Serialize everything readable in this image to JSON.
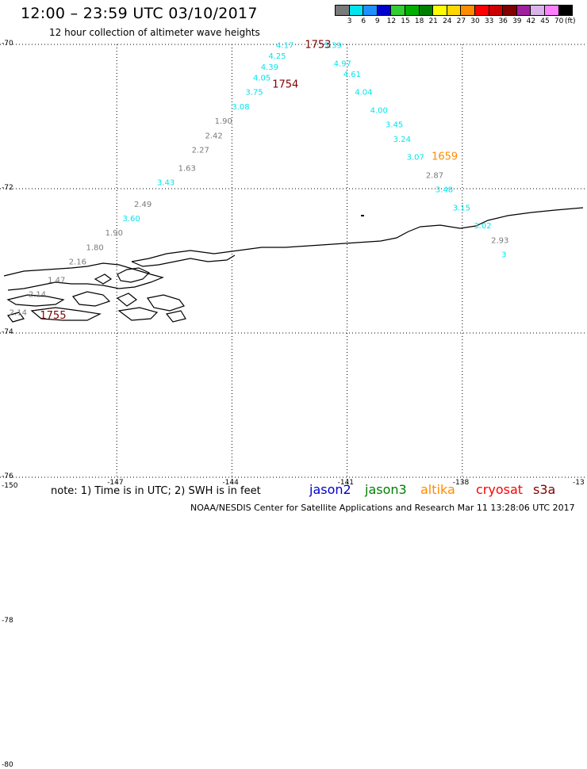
{
  "header": {
    "title": "12:00 – 23:59 UTC 03/10/2017",
    "subtitle": "12 hour collection of altimeter wave heights"
  },
  "legend": {
    "unit": "(ft)",
    "bins": [
      {
        "label": "3",
        "color": "#7a7a7a"
      },
      {
        "label": "6",
        "color": "#00e5ee"
      },
      {
        "label": "9",
        "color": "#1e90ff"
      },
      {
        "label": "12",
        "color": "#0000cd"
      },
      {
        "label": "15",
        "color": "#32cd32"
      },
      {
        "label": "18",
        "color": "#00b000"
      },
      {
        "label": "21",
        "color": "#008000"
      },
      {
        "label": "24",
        "color": "#ffff00"
      },
      {
        "label": "27",
        "color": "#ffd700"
      },
      {
        "label": "30",
        "color": "#ff8c00"
      },
      {
        "label": "33",
        "color": "#ff0000"
      },
      {
        "label": "36",
        "color": "#cc0000"
      },
      {
        "label": "39",
        "color": "#800000"
      },
      {
        "label": "42",
        "color": "#a020a0"
      },
      {
        "label": "45",
        "color": "#d8b4e8"
      },
      {
        "label": "70",
        "color": "#ff80ff"
      },
      {
        "label": "",
        "color": "#000000"
      }
    ]
  },
  "map": {
    "lat_labels": [
      "-70",
      "-72",
      "-74",
      "-76",
      "-78",
      "-80"
    ],
    "lon_labels": [
      "-150",
      "-147",
      "-144",
      "-141",
      "-138",
      "-13"
    ]
  },
  "tracks": [
    {
      "color": "#00e5ee",
      "time_label": "",
      "points": [
        {
          "lon": -142.85,
          "lat": -70.05,
          "value": "4.17"
        },
        {
          "lon": -143.05,
          "lat": -70.2,
          "value": "4.25"
        },
        {
          "lon": -143.25,
          "lat": -70.35,
          "value": "4.39"
        },
        {
          "lon": -143.45,
          "lat": -70.5,
          "value": "4.05"
        },
        {
          "lon": -143.65,
          "lat": -70.7,
          "value": "3.75"
        },
        {
          "lon": -144.0,
          "lat": -70.9,
          "value": "3.08"
        }
      ]
    },
    {
      "color": "#7a7a7a",
      "time_label": "",
      "points": [
        {
          "lon": -144.45,
          "lat": -71.1,
          "value": "1.90"
        },
        {
          "lon": -144.7,
          "lat": -71.3,
          "value": "2.42"
        },
        {
          "lon": -145.05,
          "lat": -71.5,
          "value": "2.27"
        },
        {
          "lon": -145.4,
          "lat": -71.75,
          "value": "1.63"
        }
      ]
    },
    {
      "color": "#00e5ee",
      "time_label": "",
      "points": [
        {
          "lon": -145.95,
          "lat": -71.95,
          "value": "3.43"
        }
      ]
    },
    {
      "color": "#7a7a7a",
      "time_label": "",
      "points": [
        {
          "lon": -146.55,
          "lat": -72.25,
          "value": "2.49"
        }
      ]
    },
    {
      "color": "#00e5ee",
      "time_label": "",
      "points": [
        {
          "lon": -146.85,
          "lat": -72.45,
          "value": "3.60"
        }
      ]
    },
    {
      "color": "#7a7a7a",
      "time_label": "",
      "points": [
        {
          "lon": -147.3,
          "lat": -72.65,
          "value": "1.90"
        },
        {
          "lon": -147.8,
          "lat": -72.85,
          "value": "1.80"
        },
        {
          "lon": -148.25,
          "lat": -73.05,
          "value": "2.16"
        },
        {
          "lon": -148.8,
          "lat": -73.3,
          "value": "1.47"
        },
        {
          "lon": -149.3,
          "lat": -73.5,
          "value": "2.14"
        },
        {
          "lon": -149.8,
          "lat": -73.75,
          "value": "2.14"
        }
      ]
    },
    {
      "color": "#00e5ee",
      "time_label": "1659",
      "time_color": "#ff8c00",
      "points": [
        {
          "lon": -141.6,
          "lat": -70.05,
          "value": "5.39"
        },
        {
          "lon": -141.35,
          "lat": -70.3,
          "value": "4.97"
        },
        {
          "lon": -141.1,
          "lat": -70.45,
          "value": "4.61"
        },
        {
          "lon": -140.8,
          "lat": -70.7,
          "value": "4.04"
        },
        {
          "lon": -140.4,
          "lat": -70.95,
          "value": "4.00"
        },
        {
          "lon": -140.0,
          "lat": -71.15,
          "value": "3.45"
        },
        {
          "lon": -139.8,
          "lat": -71.35,
          "value": "3.24"
        },
        {
          "lon": -139.45,
          "lat": -71.6,
          "value": "3.07"
        }
      ]
    },
    {
      "color": "#7a7a7a",
      "time_label": "",
      "points": [
        {
          "lon": -138.95,
          "lat": -71.85,
          "value": "2.87"
        }
      ]
    },
    {
      "color": "#00e5ee",
      "time_label": "",
      "points": [
        {
          "lon": -138.7,
          "lat": -72.05,
          "value": "3.48"
        },
        {
          "lon": -138.25,
          "lat": -72.3,
          "value": "3.15"
        },
        {
          "lon": -137.7,
          "lat": -72.55,
          "value": "3.02"
        }
      ]
    },
    {
      "color": "#7a7a7a",
      "time_label": "",
      "points": [
        {
          "lon": -137.25,
          "lat": -72.75,
          "value": "2.93"
        }
      ]
    },
    {
      "color": "#00e5ee",
      "time_label": "",
      "points": [
        {
          "lon": -136.98,
          "lat": -72.95,
          "value": "3"
        }
      ]
    }
  ],
  "time_tags": [
    {
      "label": "1753",
      "color": "#800000",
      "lon": -142.1,
      "lat": -70.05
    },
    {
      "label": "1754",
      "color": "#800000",
      "lon": -142.95,
      "lat": -70.6
    },
    {
      "label": "1755",
      "color": "#800000",
      "lon": -149.0,
      "lat": -73.8
    },
    {
      "label": "1659",
      "color": "#ff8c00",
      "lon": -138.8,
      "lat": -71.6
    }
  ],
  "note": "note: 1) Time is in UTC; 2) SWH is in feet",
  "satellites": [
    {
      "label": "jason2",
      "color": "#0000cd"
    },
    {
      "label": "jason3",
      "color": "#008000"
    },
    {
      "label": "altika",
      "color": "#ff8c00"
    },
    {
      "label": "cryosat",
      "color": "#ff0000"
    },
    {
      "label": "s3a",
      "color": "#800000"
    }
  ],
  "footer": "NOAA/NESDIS Center for Satellite Applications and Research    Mar 11 13:28:06 UTC 2017"
}
